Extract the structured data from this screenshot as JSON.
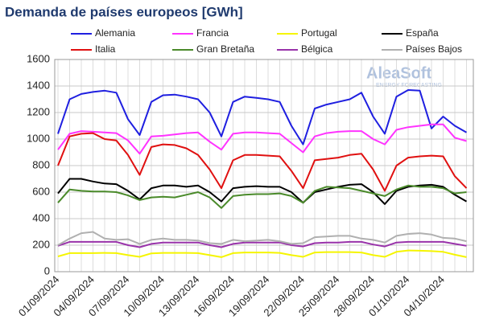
{
  "chart_data": {
    "type": "line",
    "title": "Demanda de países europeos [GWh]",
    "watermark": [
      "AleaSoft",
      "ENERGY FORECASTING"
    ],
    "categories": [
      "01/09/2024",
      null,
      null,
      "04/09/2024",
      null,
      null,
      "07/09/2024",
      null,
      null,
      "10/09/2024",
      null,
      null,
      "13/09/2024",
      null,
      null,
      "16/09/2024",
      null,
      null,
      "19/09/2024",
      null,
      null,
      "22/09/2024",
      null,
      null,
      "25/09/2024",
      null,
      null,
      "28/09/2024",
      null,
      null,
      "01/10/2024",
      null,
      null,
      "04/10/2024",
      null,
      null
    ],
    "ylim": [
      0,
      1600
    ],
    "yticks": [
      0,
      200,
      400,
      600,
      800,
      1000,
      1200,
      1400,
      1600
    ],
    "grid": true,
    "series": [
      {
        "name": "Alemania",
        "color": "#1f1fe0",
        "values": [
          1040,
          1300,
          1340,
          1355,
          1365,
          1350,
          1150,
          1030,
          1280,
          1330,
          1335,
          1320,
          1300,
          1200,
          1020,
          1280,
          1320,
          1310,
          1300,
          1280,
          1100,
          960,
          1230,
          1260,
          1280,
          1300,
          1350,
          1170,
          1040,
          1320,
          1370,
          1365,
          1080,
          1170,
          1100,
          1050
        ]
      },
      {
        "name": "Francia",
        "color": "#ff33ff",
        "values": [
          920,
          1040,
          1060,
          1055,
          1050,
          1045,
          990,
          890,
          1020,
          1025,
          1035,
          1045,
          1050,
          980,
          920,
          1040,
          1050,
          1050,
          1045,
          1040,
          970,
          900,
          1020,
          1045,
          1055,
          1060,
          1060,
          1000,
          960,
          1070,
          1090,
          1100,
          1110,
          1110,
          1010,
          985
        ]
      },
      {
        "name": "Portugal",
        "color": "#f5f500",
        "values": [
          115,
          140,
          140,
          140,
          142,
          140,
          125,
          112,
          138,
          142,
          142,
          142,
          140,
          125,
          110,
          140,
          145,
          145,
          145,
          142,
          125,
          112,
          145,
          148,
          148,
          148,
          145,
          125,
          112,
          150,
          160,
          158,
          155,
          150,
          128,
          110
        ]
      },
      {
        "name": "España",
        "color": "#000000",
        "values": [
          590,
          700,
          700,
          680,
          665,
          660,
          610,
          545,
          630,
          650,
          650,
          640,
          650,
          600,
          530,
          630,
          640,
          645,
          640,
          640,
          600,
          520,
          600,
          620,
          640,
          655,
          660,
          600,
          510,
          610,
          640,
          650,
          655,
          640,
          580,
          530
        ]
      },
      {
        "name": "Italia",
        "color": "#e01010",
        "values": [
          800,
          1020,
          1040,
          1045,
          1000,
          990,
          880,
          730,
          940,
          960,
          955,
          930,
          880,
          770,
          630,
          840,
          880,
          880,
          875,
          870,
          760,
          630,
          840,
          850,
          860,
          880,
          890,
          770,
          610,
          800,
          860,
          870,
          875,
          870,
          720,
          630
        ]
      },
      {
        "name": "Gran Bretaña",
        "color": "#4a8a2a",
        "values": [
          520,
          620,
          610,
          605,
          605,
          600,
          575,
          540,
          560,
          565,
          560,
          580,
          600,
          560,
          480,
          570,
          580,
          585,
          585,
          590,
          570,
          520,
          610,
          640,
          635,
          630,
          610,
          590,
          570,
          620,
          650,
          640,
          640,
          630,
          590,
          600
        ]
      },
      {
        "name": "Bélgica",
        "color": "#9933aa",
        "values": [
          195,
          225,
          225,
          225,
          225,
          225,
          200,
          185,
          210,
          220,
          220,
          220,
          220,
          200,
          185,
          210,
          220,
          220,
          220,
          220,
          200,
          190,
          215,
          220,
          220,
          225,
          225,
          205,
          190,
          220,
          225,
          225,
          225,
          225,
          210,
          195
        ]
      },
      {
        "name": "Países Bajos",
        "color": "#b0b0b0",
        "values": [
          200,
          250,
          290,
          300,
          250,
          240,
          245,
          210,
          240,
          250,
          240,
          240,
          235,
          215,
          210,
          240,
          230,
          235,
          240,
          230,
          210,
          215,
          260,
          265,
          270,
          270,
          250,
          240,
          220,
          270,
          285,
          290,
          280,
          255,
          250,
          230
        ]
      }
    ]
  }
}
